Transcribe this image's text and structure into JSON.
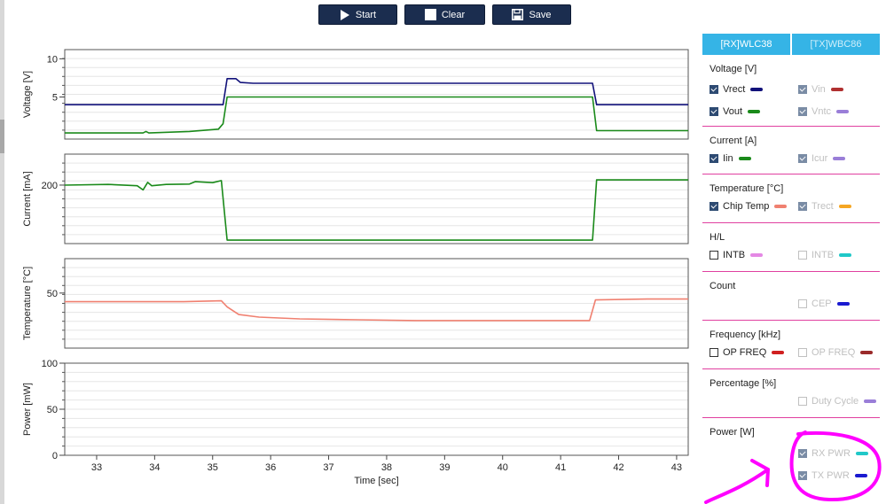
{
  "toolbar": {
    "start_label": "Start",
    "clear_label": "Clear",
    "save_label": "Save"
  },
  "tabs": [
    "[RX]WLC38",
    "[TX]WBC86"
  ],
  "x_axis": {
    "label": "Time [sec]",
    "ticks": [
      "33",
      "34",
      "35",
      "36",
      "37",
      "38",
      "39",
      "40",
      "41",
      "42",
      "43"
    ],
    "range": [
      32.45,
      43.2
    ]
  },
  "plots": [
    {
      "ylabel": "Voltage [V]",
      "ticks": [
        "10",
        "5"
      ]
    },
    {
      "ylabel": "Current [mA]",
      "ticks": [
        "200"
      ]
    },
    {
      "ylabel": "Temperature [°C]",
      "ticks": [
        "50"
      ]
    },
    {
      "ylabel": "Power [mW]",
      "ticks": [
        "100",
        "50",
        "0"
      ]
    }
  ],
  "chart_data": [
    {
      "type": "line",
      "ylabel": "Voltage [V]",
      "ylim": [
        -0.5,
        11.2
      ],
      "series": [
        {
          "name": "Vrect",
          "color": "#12127a",
          "x": [
            32.45,
            35.18,
            35.25,
            35.4,
            35.48,
            35.7,
            36,
            41.55,
            41.62,
            43.2
          ],
          "y": [
            4.0,
            4.0,
            7.4,
            7.4,
            6.9,
            6.8,
            6.8,
            6.8,
            4.0,
            4.0
          ]
        },
        {
          "name": "Vout",
          "color": "#1a8a1a",
          "x": [
            32.45,
            33.8,
            33.85,
            33.9,
            34.6,
            35.1,
            35.18,
            35.25,
            41.55,
            41.62,
            43.2
          ],
          "y": [
            0.3,
            0.3,
            0.5,
            0.3,
            0.5,
            0.8,
            1.5,
            5.0,
            5.0,
            0.6,
            0.6
          ]
        }
      ]
    },
    {
      "type": "line",
      "ylabel": "Current [mA]",
      "ylim": [
        30,
        290
      ],
      "series": [
        {
          "name": "Iin",
          "color": "#1a8a1a",
          "x": [
            32.45,
            33.2,
            33.7,
            33.8,
            33.88,
            33.95,
            34.2,
            34.6,
            34.7,
            35.0,
            35.15,
            35.25,
            41.55,
            41.62,
            43.2
          ],
          "y": [
            200,
            202,
            198,
            186,
            208,
            198,
            202,
            203,
            210,
            207,
            213,
            40,
            40,
            215,
            215
          ]
        }
      ]
    },
    {
      "type": "line",
      "ylabel": "Temperature [°C]",
      "ylim": [
        18,
        70
      ],
      "series": [
        {
          "name": "Chip Temp",
          "color": "#f08070",
          "x": [
            32.45,
            33.5,
            34.5,
            35.15,
            35.25,
            35.45,
            35.8,
            36.5,
            37.5,
            38.5,
            39.5,
            40.5,
            41.5,
            41.6,
            42.5,
            43.2
          ],
          "y": [
            45,
            45,
            45,
            45.5,
            42,
            37.5,
            36,
            35,
            34.5,
            34,
            34,
            34,
            34,
            46,
            46.5,
            46.5
          ]
        }
      ]
    },
    {
      "type": "line",
      "ylabel": "Power [mW]",
      "ylim": [
        0,
        100
      ],
      "series": []
    }
  ],
  "sections": [
    {
      "title": "Voltage [V]",
      "items": [
        {
          "label": "Vrect",
          "checked": true,
          "enabled": true,
          "color": "#12127a"
        },
        {
          "label": "Vin",
          "checked": true,
          "enabled": false,
          "color": "#b03030"
        },
        {
          "label": "Vout",
          "checked": true,
          "enabled": true,
          "color": "#1a8a1a"
        },
        {
          "label": "Vntc",
          "checked": true,
          "enabled": false,
          "color": "#9a7ed8"
        }
      ]
    },
    {
      "title": "Current [A]",
      "items": [
        {
          "label": "Iin",
          "checked": true,
          "enabled": true,
          "color": "#1a8a1a"
        },
        {
          "label": "Icur",
          "checked": true,
          "enabled": false,
          "color": "#9a7ed8"
        }
      ]
    },
    {
      "title": "Temperature [°C]",
      "items": [
        {
          "label": "Chip Temp",
          "checked": true,
          "enabled": true,
          "color": "#f08070"
        },
        {
          "label": "Trect",
          "checked": true,
          "enabled": false,
          "color": "#f5a623"
        }
      ]
    },
    {
      "title": "H/L",
      "items": [
        {
          "label": "INTB",
          "checked": false,
          "enabled": true,
          "color": "#e488e4"
        },
        {
          "label": "INTB",
          "checked": false,
          "enabled": false,
          "color": "#20c8c8"
        }
      ]
    },
    {
      "title": "Count",
      "items": [
        {
          "label": "CEP",
          "checked": false,
          "enabled": false,
          "color": "#1a1ad0"
        }
      ]
    },
    {
      "title": "Frequency [kHz]",
      "items": [
        {
          "label": "OP FREQ",
          "checked": false,
          "enabled": true,
          "color": "#d02020"
        },
        {
          "label": "OP FREQ",
          "checked": false,
          "enabled": false,
          "color": "#9a2a2a"
        }
      ]
    },
    {
      "title": "Percentage [%]",
      "items": [
        {
          "label": "Duty Cycle",
          "checked": false,
          "enabled": false,
          "color": "#9a7ed8"
        }
      ]
    },
    {
      "title": "Power [W]",
      "items": [
        {
          "label": "RX PWR",
          "checked": true,
          "enabled": false,
          "color": "#20c8c8"
        },
        {
          "label": "TX PWR",
          "checked": true,
          "enabled": false,
          "color": "#1a1ad0"
        }
      ]
    }
  ],
  "annotation": {
    "color": "#ff00ff"
  }
}
